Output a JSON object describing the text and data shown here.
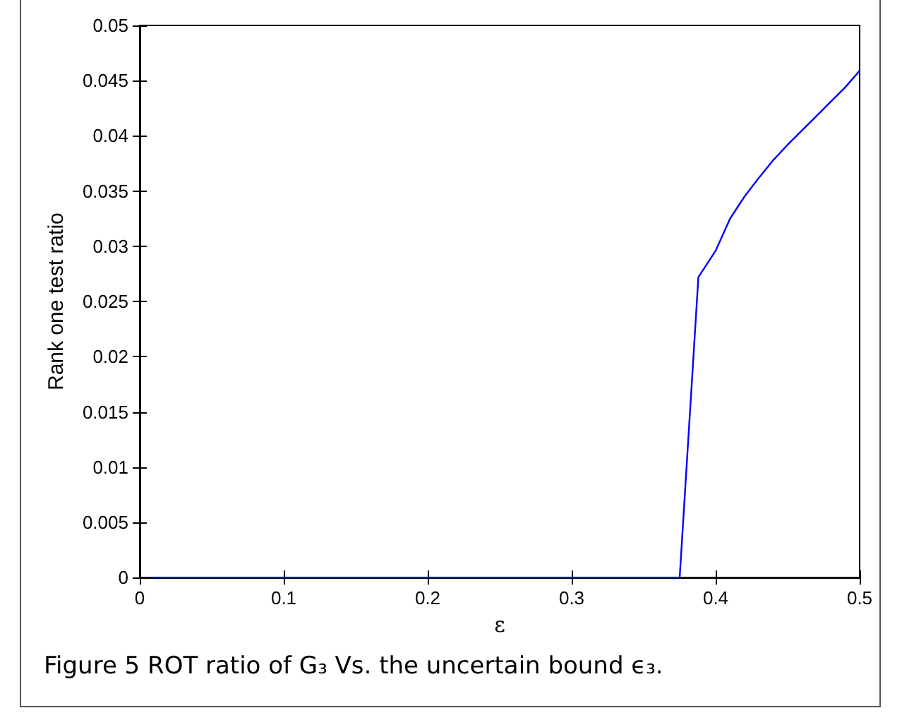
{
  "chart_data": {
    "type": "line",
    "xlabel": "ε",
    "ylabel": "Rank one test ratio",
    "annotations": [
      "Figure 5 ROT ratio of G₃ Vs. the uncertain bound ϵ₃."
    ],
    "series": [
      {
        "color": "#0000ff",
        "x": [
          0.01,
          0.375,
          0.388,
          0.4,
          0.41,
          0.42,
          0.43,
          0.44,
          0.45,
          0.46,
          0.47,
          0.48,
          0.49,
          0.5
        ],
        "values": [
          0,
          0,
          0.0272,
          0.0296,
          0.0325,
          0.0345,
          0.0362,
          0.0378,
          0.0392,
          0.0405,
          0.0418,
          0.0431,
          0.0444,
          0.0459
        ]
      }
    ],
    "xlim": [
      0,
      0.5
    ],
    "xticks": [
      0,
      0.1,
      0.2,
      0.3,
      0.4,
      0.5
    ],
    "ylim": [
      0,
      0.05
    ],
    "yticks": [
      0,
      0.005,
      0.01,
      0.015,
      0.02,
      0.025,
      0.03,
      0.035,
      0.04,
      0.045,
      0.05
    ],
    "grid": false,
    "marker": "none",
    "line_style": "solid"
  }
}
